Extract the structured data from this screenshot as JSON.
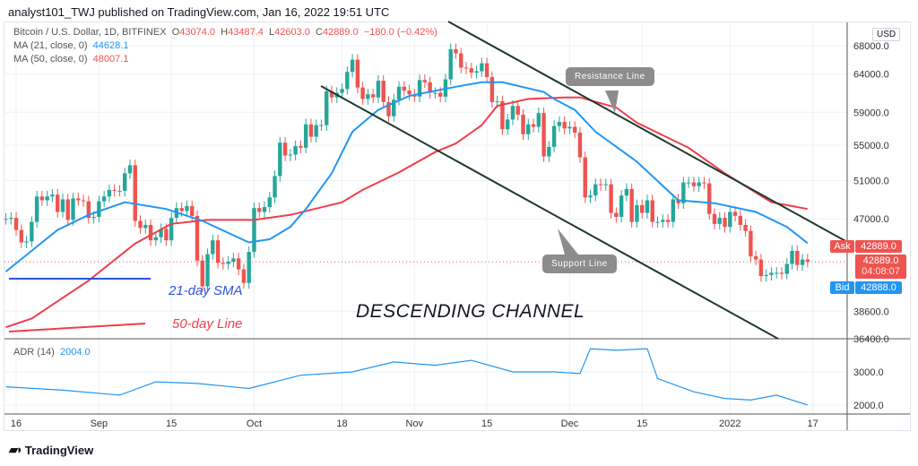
{
  "header": {
    "published": "analyst101_TWJ published on TradingView.com, Jan 16, 2022 19:51 UTC"
  },
  "legend": {
    "symbol": "Bitcoin / U.S. Dollar, 1D, BITFINEX",
    "o_label": "O",
    "o": "43074.0",
    "h_label": "H",
    "h": "43487.4",
    "l_label": "L",
    "l": "42603.0",
    "c_label": "C",
    "c": "42889.0",
    "change": "−180.0 (−0.42%)",
    "ma21_label": "MA (21, close, 0)",
    "ma21_value": "44628.1",
    "ma50_label": "MA (50, close, 0)",
    "ma50_value": "48007.1",
    "adr_label": "ADR (14)",
    "adr_value": "2004.0"
  },
  "price_axis": {
    "currency": "USD",
    "ask_label": "Ask",
    "ask": "42889.0",
    "last": "42889.0",
    "countdown": "04:08:07",
    "bid_label": "Bid",
    "bid": "42888.0"
  },
  "annotations": {
    "sma_note": "21-day SMA",
    "line_note": "50-day Line",
    "channel": "DESCENDING CHANNEL",
    "resistance": "Resistance Line",
    "support": "Support Line"
  },
  "footer": {
    "brand": "TradingView"
  },
  "colors": {
    "up": "#26a69a",
    "down": "#ef5350",
    "ma21": "#2196f3",
    "ma50": "#ef3e4a",
    "channel": "#1e3a2c",
    "grid": "#eef1f6"
  },
  "chart_data": {
    "type": "candlestick",
    "scale": "log",
    "ylim": [
      36400,
      68000
    ],
    "grid": true,
    "y_ticks": [
      68000,
      64000,
      59000,
      55000,
      51000,
      47000,
      38600,
      36400
    ],
    "x_ticks": [
      {
        "label": "16",
        "date": "2021-08-16"
      },
      {
        "label": "Sep",
        "date": "2021-09-01"
      },
      {
        "label": "15",
        "date": "2021-09-15"
      },
      {
        "label": "Oct",
        "date": "2021-10-01"
      },
      {
        "label": "18",
        "date": "2021-10-18"
      },
      {
        "label": "Nov",
        "date": "2021-11-01"
      },
      {
        "label": "15",
        "date": "2021-11-15"
      },
      {
        "label": "Dec",
        "date": "2021-12-01"
      },
      {
        "label": "15",
        "date": "2021-12-15"
      },
      {
        "label": "2022",
        "date": "2022-01-01"
      },
      {
        "label": "17",
        "date": "2022-01-17"
      }
    ],
    "candles_by_month": [
      {
        "month": "2021-08",
        "first_day": 14,
        "closes": [
          47000,
          47100,
          45900,
          44700,
          44800,
          46700,
          49300,
          48900,
          49300,
          49500,
          47700,
          49000,
          46900,
          49100,
          48900,
          48800,
          47100,
          47200
        ]
      },
      {
        "month": "2021-09",
        "first_day": 1,
        "closes": [
          48800,
          49300,
          50000,
          49900,
          49900,
          51800,
          52700,
          46800,
          46100,
          46400,
          44900,
          45200,
          46000,
          44900,
          47100,
          48100,
          47800,
          48300,
          47300,
          43000,
          40700,
          43600,
          44900,
          42800,
          42700,
          42900,
          43200,
          42200,
          41000,
          43800
        ]
      },
      {
        "month": "2021-10",
        "first_day": 1,
        "closes": [
          48100,
          47700,
          48200,
          49200,
          51500,
          55300,
          53800,
          53900,
          54900,
          54700,
          57500,
          56000,
          57400,
          57400,
          61700,
          60900,
          61500,
          62000,
          64300,
          66000,
          62200,
          60700,
          61300,
          60900,
          63100,
          60300,
          58500,
          60600,
          62300,
          61800,
          61300
        ]
      },
      {
        "month": "2021-11",
        "first_day": 1,
        "closes": [
          61000,
          63200,
          62900,
          61500,
          61500,
          61000,
          63300,
          67500,
          66900,
          64900,
          64800,
          64200,
          64400,
          65500,
          63600,
          60300,
          60400,
          56900,
          58100,
          59800,
          58700,
          56300,
          57500,
          57200,
          58900,
          53700,
          54800,
          57300,
          57800,
          57000
        ]
      },
      {
        "month": "2021-12",
        "first_day": 1,
        "closes": [
          57200,
          56500,
          53600,
          49200,
          49400,
          50600,
          50500,
          50600,
          47600,
          47200,
          49400,
          50100,
          46700,
          48400,
          47600,
          48900,
          46700,
          46700,
          46900,
          46700,
          49000,
          48600,
          50800,
          50800,
          50400,
          50800,
          50700,
          47500,
          46500,
          47100,
          46200
        ]
      },
      {
        "month": "2022-01",
        "first_day": 1,
        "closes": [
          47700,
          47300,
          46400,
          45800,
          43400,
          43100,
          41600,
          41700,
          41900,
          41900,
          41800,
          42700,
          43900,
          42600,
          43100,
          42889
        ]
      }
    ],
    "ma21": [
      [
        "2021-08-14",
        42000
      ],
      [
        "2021-08-19",
        43900
      ],
      [
        "2021-08-24",
        45900
      ],
      [
        "2021-08-30",
        47400
      ],
      [
        "2021-09-06",
        48700
      ],
      [
        "2021-09-14",
        48000
      ],
      [
        "2021-09-21",
        46800
      ],
      [
        "2021-09-30",
        44700
      ],
      [
        "2021-10-04",
        45000
      ],
      [
        "2021-10-08",
        46200
      ],
      [
        "2021-10-11",
        48000
      ],
      [
        "2021-10-16",
        51800
      ],
      [
        "2021-10-20",
        56600
      ],
      [
        "2021-10-25",
        59300
      ],
      [
        "2021-10-31",
        61100
      ],
      [
        "2021-11-09",
        62300
      ],
      [
        "2021-11-14",
        62900
      ],
      [
        "2021-11-18",
        62900
      ],
      [
        "2021-11-26",
        61600
      ],
      [
        "2021-11-28",
        60700
      ],
      [
        "2021-12-02",
        59300
      ],
      [
        "2021-12-06",
        56600
      ],
      [
        "2021-12-14",
        53100
      ],
      [
        "2021-12-22",
        48900
      ],
      [
        "2021-12-29",
        48600
      ],
      [
        "2022-01-06",
        47700
      ],
      [
        "2022-01-12",
        46200
      ],
      [
        "2022-01-16",
        44628
      ]
    ],
    "ma50": [
      [
        "2021-08-14",
        37300
      ],
      [
        "2021-08-19",
        38000
      ],
      [
        "2021-08-30",
        41200
      ],
      [
        "2021-09-08",
        44600
      ],
      [
        "2021-09-15",
        46500
      ],
      [
        "2021-09-22",
        46900
      ],
      [
        "2021-10-01",
        46900
      ],
      [
        "2021-10-08",
        47400
      ],
      [
        "2021-10-18",
        48700
      ],
      [
        "2021-10-22",
        50000
      ],
      [
        "2021-10-29",
        51900
      ],
      [
        "2021-11-05",
        54200
      ],
      [
        "2021-11-09",
        55200
      ],
      [
        "2021-11-14",
        57400
      ],
      [
        "2021-11-17",
        59800
      ],
      [
        "2021-11-23",
        60700
      ],
      [
        "2021-11-30",
        60900
      ],
      [
        "2021-12-03",
        60900
      ],
      [
        "2021-12-10",
        59600
      ],
      [
        "2021-12-14",
        57700
      ],
      [
        "2021-12-24",
        54700
      ],
      [
        "2021-12-31",
        51800
      ],
      [
        "2022-01-09",
        48700
      ],
      [
        "2022-01-16",
        48007
      ]
    ],
    "adr": {
      "ylim": [
        1800,
        4000
      ],
      "y_ticks": [
        3000,
        2000
      ],
      "values": [
        [
          "2021-08-14",
          2550
        ],
        [
          "2021-08-25",
          2450
        ],
        [
          "2021-09-05",
          2300
        ],
        [
          "2021-09-12",
          2700
        ],
        [
          "2021-09-20",
          2650
        ],
        [
          "2021-09-30",
          2500
        ],
        [
          "2021-10-10",
          2900
        ],
        [
          "2021-10-20",
          3000
        ],
        [
          "2021-10-28",
          3300
        ],
        [
          "2021-11-05",
          3200
        ],
        [
          "2021-11-12",
          3350
        ],
        [
          "2021-11-20",
          3000
        ],
        [
          "2021-11-28",
          3000
        ],
        [
          "2021-12-03",
          2950
        ],
        [
          "2021-12-05",
          3700
        ],
        [
          "2021-12-10",
          3650
        ],
        [
          "2021-12-16",
          3700
        ],
        [
          "2021-12-18",
          2800
        ],
        [
          "2021-12-25",
          2400
        ],
        [
          "2021-12-31",
          2200
        ],
        [
          "2022-01-05",
          2150
        ],
        [
          "2022-01-10",
          2300
        ],
        [
          "2022-01-16",
          2004
        ]
      ]
    }
  }
}
